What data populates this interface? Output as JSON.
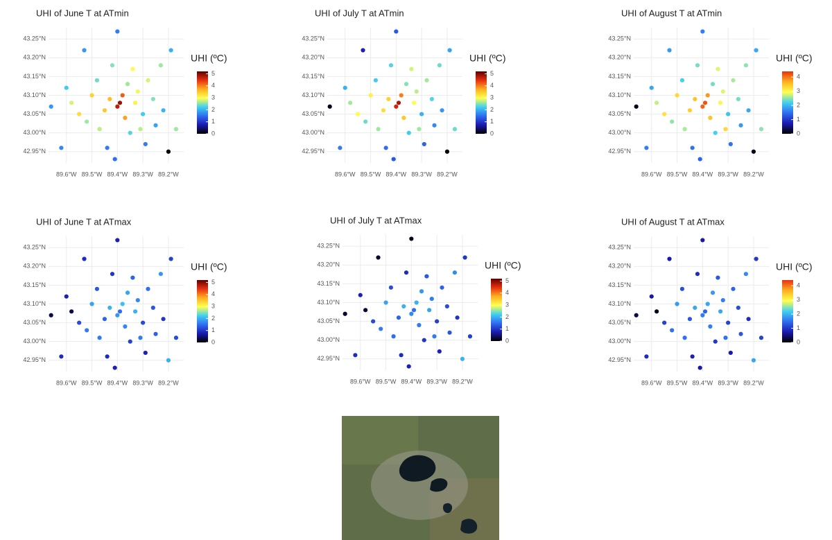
{
  "chart_data": [
    {
      "type": "scatter",
      "title": "UHI of June T at ATmin",
      "x": [
        -89.66,
        -89.62,
        -89.6,
        -89.58,
        -89.55,
        -89.53,
        -89.52,
        -89.5,
        -89.48,
        -89.47,
        -89.45,
        -89.44,
        -89.43,
        -89.42,
        -89.41,
        -89.4,
        -89.4,
        -89.39,
        -89.38,
        -89.37,
        -89.36,
        -89.35,
        -89.34,
        -89.33,
        -89.32,
        -89.31,
        -89.3,
        -89.29,
        -89.28,
        -89.26,
        -89.25,
        -89.23,
        -89.22,
        -89.2,
        -89.19,
        -89.17
      ],
      "y": [
        43.07,
        42.96,
        43.12,
        43.08,
        43.05,
        43.22,
        43.03,
        43.1,
        43.14,
        43.01,
        43.06,
        42.96,
        43.09,
        43.18,
        42.93,
        43.27,
        43.07,
        43.08,
        43.1,
        43.04,
        43.13,
        43.0,
        43.17,
        43.08,
        43.11,
        43.01,
        43.05,
        42.97,
        43.14,
        43.09,
        43.02,
        43.18,
        43.06,
        42.95,
        43.22,
        43.01
      ],
      "values": [
        1.8,
        1.7,
        2.2,
        2.8,
        3.3,
        1.8,
        2.6,
        3.4,
        2.4,
        2.7,
        3.5,
        1.6,
        3.6,
        2.5,
        1.5,
        1.6,
        4.7,
        4.9,
        4.2,
        3.8,
        2.6,
        2.3,
        3.0,
        3.1,
        2.9,
        2.7,
        2.2,
        1.6,
        2.8,
        2.5,
        1.9,
        2.6,
        2.0,
        0.0,
        2.0,
        2.6
      ],
      "xlim": [
        -89.67,
        -89.14
      ],
      "ylim": [
        42.92,
        43.28
      ],
      "xticks": [
        {
          "value": -89.6,
          "label": "89.6°W"
        },
        {
          "value": -89.5,
          "label": "89.5°W"
        },
        {
          "value": -89.4,
          "label": "89.4°W"
        },
        {
          "value": -89.3,
          "label": "89.3°W"
        },
        {
          "value": -89.2,
          "label": "89.2°W"
        }
      ],
      "yticks": [
        {
          "value": 42.95,
          "label": "42.95°N"
        },
        {
          "value": 43.0,
          "label": "43.00°N"
        },
        {
          "value": 43.05,
          "label": "43.05°N"
        },
        {
          "value": 43.1,
          "label": "43.10°N"
        },
        {
          "value": 43.15,
          "label": "43.15°N"
        },
        {
          "value": 43.2,
          "label": "43.20°N"
        },
        {
          "value": 43.25,
          "label": "43.25°N"
        }
      ],
      "grid": true,
      "colorbar": {
        "title": "UHI (ºC)",
        "lim": [
          0,
          5.2
        ],
        "ticks": [
          0,
          1,
          2,
          3,
          4,
          5
        ],
        "colors": [
          "#000000",
          "#1a1ab0",
          "#2f6cf0",
          "#40d0f0",
          "#ffff50",
          "#ffb020",
          "#e83010",
          "#600000"
        ]
      }
    },
    {
      "type": "scatter",
      "title": "UHI of July T at ATmin",
      "x": [
        -89.66,
        -89.62,
        -89.6,
        -89.58,
        -89.55,
        -89.53,
        -89.52,
        -89.5,
        -89.48,
        -89.47,
        -89.45,
        -89.44,
        -89.43,
        -89.42,
        -89.41,
        -89.4,
        -89.4,
        -89.39,
        -89.38,
        -89.37,
        -89.36,
        -89.35,
        -89.34,
        -89.33,
        -89.32,
        -89.31,
        -89.3,
        -89.29,
        -89.28,
        -89.26,
        -89.25,
        -89.23,
        -89.22,
        -89.2,
        -89.19,
        -89.17
      ],
      "y": [
        43.07,
        42.96,
        43.12,
        43.08,
        43.05,
        43.22,
        43.03,
        43.1,
        43.14,
        43.01,
        43.06,
        42.96,
        43.09,
        43.18,
        42.93,
        43.27,
        43.07,
        43.08,
        43.1,
        43.04,
        43.13,
        43.0,
        43.17,
        43.08,
        43.11,
        43.01,
        43.05,
        42.97,
        43.14,
        43.09,
        43.02,
        43.18,
        43.06,
        42.95,
        43.22,
        43.01
      ],
      "values": [
        0.1,
        1.6,
        2.0,
        2.6,
        3.0,
        0.8,
        2.4,
        3.1,
        2.2,
        2.6,
        3.3,
        1.5,
        3.4,
        2.3,
        1.3,
        1.3,
        4.6,
        4.8,
        4.0,
        3.5,
        2.5,
        2.2,
        2.8,
        3.0,
        2.7,
        2.6,
        2.0,
        1.4,
        2.6,
        2.3,
        1.7,
        2.4,
        1.8,
        0.0,
        1.9,
        2.4
      ],
      "xlim": [
        -89.67,
        -89.14
      ],
      "ylim": [
        42.92,
        43.28
      ],
      "xticks": [
        {
          "value": -89.6,
          "label": "89.6°W"
        },
        {
          "value": -89.5,
          "label": "89.5°W"
        },
        {
          "value": -89.4,
          "label": "89.4°W"
        },
        {
          "value": -89.3,
          "label": "89.3°W"
        },
        {
          "value": -89.2,
          "label": "89.2°W"
        }
      ],
      "yticks": [
        {
          "value": 42.95,
          "label": "42.95°N"
        },
        {
          "value": 43.0,
          "label": "43.00°N"
        },
        {
          "value": 43.05,
          "label": "43.05°N"
        },
        {
          "value": 43.1,
          "label": "43.10°N"
        },
        {
          "value": 43.15,
          "label": "43.15°N"
        },
        {
          "value": 43.2,
          "label": "43.20°N"
        },
        {
          "value": 43.25,
          "label": "43.25°N"
        }
      ],
      "grid": true,
      "colorbar": {
        "title": "UHI (ºC)",
        "lim": [
          0,
          5.2
        ],
        "ticks": [
          0,
          1,
          2,
          3,
          4,
          5
        ],
        "colors": [
          "#000000",
          "#1a1ab0",
          "#2f6cf0",
          "#40d0f0",
          "#ffff50",
          "#ffb020",
          "#e83010",
          "#600000"
        ]
      }
    },
    {
      "type": "scatter",
      "title": "UHI of August T at ATmin",
      "x": [
        -89.66,
        -89.62,
        -89.6,
        -89.58,
        -89.55,
        -89.53,
        -89.52,
        -89.5,
        -89.48,
        -89.47,
        -89.45,
        -89.44,
        -89.43,
        -89.42,
        -89.41,
        -89.4,
        -89.4,
        -89.39,
        -89.38,
        -89.37,
        -89.36,
        -89.35,
        -89.34,
        -89.33,
        -89.32,
        -89.31,
        -89.3,
        -89.29,
        -89.28,
        -89.26,
        -89.25,
        -89.23,
        -89.22,
        -89.2,
        -89.19,
        -89.17
      ],
      "y": [
        43.07,
        42.96,
        43.12,
        43.08,
        43.05,
        43.22,
        43.03,
        43.1,
        43.14,
        43.01,
        43.06,
        42.96,
        43.09,
        43.18,
        42.93,
        43.27,
        43.07,
        43.08,
        43.1,
        43.04,
        43.13,
        43.0,
        43.17,
        43.08,
        43.11,
        43.01,
        43.05,
        42.97,
        43.14,
        43.09,
        43.02,
        43.18,
        43.06,
        42.95,
        43.22,
        43.01
      ],
      "values": [
        0.1,
        1.6,
        1.9,
        2.7,
        3.2,
        1.8,
        2.5,
        3.3,
        2.2,
        2.6,
        3.4,
        1.5,
        3.5,
        2.4,
        1.4,
        1.6,
        4.1,
        4.2,
        3.8,
        3.5,
        2.4,
        2.2,
        2.8,
        3.0,
        2.8,
        3.3,
        2.1,
        1.5,
        2.6,
        2.4,
        1.8,
        2.5,
        1.9,
        0.1,
        1.9,
        2.5
      ],
      "xlim": [
        -89.67,
        -89.14
      ],
      "ylim": [
        42.92,
        43.28
      ],
      "xticks": [
        {
          "value": -89.6,
          "label": "89.6°W"
        },
        {
          "value": -89.5,
          "label": "89.5°W"
        },
        {
          "value": -89.4,
          "label": "89.4°W"
        },
        {
          "value": -89.3,
          "label": "89.3°W"
        },
        {
          "value": -89.2,
          "label": "89.2°W"
        }
      ],
      "yticks": [
        {
          "value": 42.95,
          "label": "42.95°N"
        },
        {
          "value": 43.0,
          "label": "43.00°N"
        },
        {
          "value": 43.05,
          "label": "43.05°N"
        },
        {
          "value": 43.1,
          "label": "43.10°N"
        },
        {
          "value": 43.15,
          "label": "43.15°N"
        },
        {
          "value": 43.2,
          "label": "43.20°N"
        },
        {
          "value": 43.25,
          "label": "43.25°N"
        }
      ],
      "grid": true,
      "colorbar": {
        "title": "UHI (ºC)",
        "lim": [
          0,
          4.4
        ],
        "ticks": [
          0,
          1,
          2,
          3,
          4
        ],
        "colors": [
          "#000000",
          "#1a1ab0",
          "#2f6cf0",
          "#40d0f0",
          "#ffff50",
          "#ffb020",
          "#e83010"
        ]
      }
    },
    {
      "type": "scatter",
      "title": "UHI of June T at ATmax",
      "x": [
        -89.66,
        -89.62,
        -89.6,
        -89.58,
        -89.55,
        -89.53,
        -89.52,
        -89.5,
        -89.48,
        -89.47,
        -89.45,
        -89.44,
        -89.43,
        -89.42,
        -89.41,
        -89.4,
        -89.4,
        -89.39,
        -89.38,
        -89.37,
        -89.36,
        -89.35,
        -89.34,
        -89.33,
        -89.32,
        -89.31,
        -89.3,
        -89.29,
        -89.28,
        -89.26,
        -89.25,
        -89.23,
        -89.22,
        -89.2,
        -89.19,
        -89.17
      ],
      "y": [
        43.07,
        42.96,
        43.12,
        43.08,
        43.05,
        43.22,
        43.03,
        43.1,
        43.14,
        43.01,
        43.06,
        42.96,
        43.09,
        43.18,
        42.93,
        43.27,
        43.07,
        43.08,
        43.1,
        43.04,
        43.13,
        43.0,
        43.17,
        43.08,
        43.11,
        43.01,
        43.05,
        42.97,
        43.14,
        43.09,
        43.02,
        43.18,
        43.06,
        42.95,
        43.22,
        43.01
      ],
      "values": [
        0.3,
        0.9,
        0.8,
        0.3,
        1.2,
        0.9,
        1.6,
        1.9,
        1.3,
        1.6,
        1.4,
        0.9,
        2.0,
        1.0,
        0.8,
        0.8,
        1.8,
        1.5,
        2.1,
        1.7,
        1.9,
        1.1,
        1.4,
        2.0,
        1.7,
        1.6,
        1.2,
        0.8,
        1.5,
        1.3,
        1.4,
        1.8,
        1.0,
        2.0,
        1.1,
        1.2
      ],
      "xlim": [
        -89.67,
        -89.14
      ],
      "ylim": [
        42.92,
        43.28
      ],
      "xticks": [
        {
          "value": -89.6,
          "label": "89.6°W"
        },
        {
          "value": -89.5,
          "label": "89.5°W"
        },
        {
          "value": -89.4,
          "label": "89.4°W"
        },
        {
          "value": -89.3,
          "label": "89.3°W"
        },
        {
          "value": -89.2,
          "label": "89.2°W"
        }
      ],
      "yticks": [
        {
          "value": 42.95,
          "label": "42.95°N"
        },
        {
          "value": 43.0,
          "label": "43.00°N"
        },
        {
          "value": 43.05,
          "label": "43.05°N"
        },
        {
          "value": 43.1,
          "label": "43.10°N"
        },
        {
          "value": 43.15,
          "label": "43.15°N"
        },
        {
          "value": 43.2,
          "label": "43.20°N"
        },
        {
          "value": 43.25,
          "label": "43.25°N"
        }
      ],
      "grid": true,
      "colorbar": {
        "title": "UHI (ºC)",
        "lim": [
          0,
          5.2
        ],
        "ticks": [
          0,
          1,
          2,
          3,
          4,
          5
        ],
        "colors": [
          "#000000",
          "#1a1ab0",
          "#2f6cf0",
          "#40d0f0",
          "#ffff50",
          "#ffb020",
          "#e83010",
          "#600000"
        ]
      }
    },
    {
      "type": "scatter",
      "title": "UHI of July T at ATmax",
      "x": [
        -89.66,
        -89.62,
        -89.6,
        -89.58,
        -89.55,
        -89.53,
        -89.52,
        -89.5,
        -89.48,
        -89.47,
        -89.45,
        -89.44,
        -89.43,
        -89.42,
        -89.41,
        -89.4,
        -89.4,
        -89.39,
        -89.38,
        -89.37,
        -89.36,
        -89.35,
        -89.34,
        -89.33,
        -89.32,
        -89.31,
        -89.3,
        -89.29,
        -89.28,
        -89.26,
        -89.25,
        -89.23,
        -89.22,
        -89.2,
        -89.19,
        -89.17
      ],
      "y": [
        43.07,
        42.96,
        43.12,
        43.08,
        43.05,
        43.22,
        43.03,
        43.1,
        43.14,
        43.01,
        43.06,
        42.96,
        43.09,
        43.18,
        42.93,
        43.27,
        43.07,
        43.08,
        43.1,
        43.04,
        43.13,
        43.0,
        43.17,
        43.08,
        43.11,
        43.01,
        43.05,
        42.97,
        43.14,
        43.09,
        43.02,
        43.18,
        43.06,
        42.95,
        43.22,
        43.01
      ],
      "values": [
        0.2,
        0.9,
        0.8,
        0.2,
        1.2,
        0.2,
        1.6,
        1.9,
        1.2,
        1.5,
        1.4,
        0.9,
        2.0,
        0.9,
        0.8,
        0.1,
        1.7,
        1.5,
        2.0,
        1.6,
        1.8,
        1.0,
        1.3,
        1.9,
        1.6,
        1.6,
        1.1,
        0.8,
        1.4,
        1.2,
        1.3,
        1.7,
        1.0,
        2.0,
        1.0,
        1.1
      ],
      "xlim": [
        -89.67,
        -89.14
      ],
      "ylim": [
        42.92,
        43.28
      ],
      "xticks": [
        {
          "value": -89.6,
          "label": "89.6°W"
        },
        {
          "value": -89.5,
          "label": "89.5°W"
        },
        {
          "value": -89.4,
          "label": "89.4°W"
        },
        {
          "value": -89.3,
          "label": "89.3°W"
        },
        {
          "value": -89.2,
          "label": "89.2°W"
        }
      ],
      "yticks": [
        {
          "value": 42.95,
          "label": "42.95°N"
        },
        {
          "value": 43.0,
          "label": "43.00°N"
        },
        {
          "value": 43.05,
          "label": "43.05°N"
        },
        {
          "value": 43.1,
          "label": "43.10°N"
        },
        {
          "value": 43.15,
          "label": "43.15°N"
        },
        {
          "value": 43.2,
          "label": "43.20°N"
        },
        {
          "value": 43.25,
          "label": "43.25°N"
        }
      ],
      "grid": true,
      "colorbar": {
        "title": "UHI (ºC)",
        "lim": [
          0,
          5.2
        ],
        "ticks": [
          0,
          1,
          2,
          3,
          4,
          5
        ],
        "colors": [
          "#000000",
          "#1a1ab0",
          "#2f6cf0",
          "#40d0f0",
          "#ffff50",
          "#ffb020",
          "#e83010",
          "#600000"
        ]
      }
    },
    {
      "type": "scatter",
      "title": "UHI of August T at ATmax",
      "x": [
        -89.66,
        -89.62,
        -89.6,
        -89.58,
        -89.55,
        -89.53,
        -89.52,
        -89.5,
        -89.48,
        -89.47,
        -89.45,
        -89.44,
        -89.43,
        -89.42,
        -89.41,
        -89.4,
        -89.4,
        -89.39,
        -89.38,
        -89.37,
        -89.36,
        -89.35,
        -89.34,
        -89.33,
        -89.32,
        -89.31,
        -89.3,
        -89.29,
        -89.28,
        -89.26,
        -89.25,
        -89.23,
        -89.22,
        -89.2,
        -89.19,
        -89.17
      ],
      "y": [
        43.07,
        42.96,
        43.12,
        43.08,
        43.05,
        43.22,
        43.03,
        43.1,
        43.14,
        43.01,
        43.06,
        42.96,
        43.09,
        43.18,
        42.93,
        43.27,
        43.07,
        43.08,
        43.1,
        43.04,
        43.13,
        43.0,
        43.17,
        43.08,
        43.11,
        43.01,
        43.05,
        42.97,
        43.14,
        43.09,
        43.02,
        43.18,
        43.06,
        42.95,
        43.22,
        43.01
      ],
      "values": [
        0.3,
        0.9,
        0.7,
        0.1,
        1.1,
        0.7,
        1.5,
        1.8,
        1.2,
        1.5,
        1.3,
        0.8,
        1.9,
        0.9,
        0.7,
        0.7,
        1.6,
        1.4,
        1.9,
        1.6,
        1.8,
        1.0,
        1.3,
        1.9,
        1.6,
        1.5,
        1.1,
        0.7,
        1.4,
        1.2,
        1.3,
        1.7,
        0.9,
        1.9,
        1.0,
        1.1
      ],
      "xlim": [
        -89.67,
        -89.14
      ],
      "ylim": [
        42.92,
        43.28
      ],
      "xticks": [
        {
          "value": -89.6,
          "label": "89.6°W"
        },
        {
          "value": -89.5,
          "label": "89.5°W"
        },
        {
          "value": -89.4,
          "label": "89.4°W"
        },
        {
          "value": -89.3,
          "label": "89.3°W"
        },
        {
          "value": -89.2,
          "label": "89.2°W"
        }
      ],
      "yticks": [
        {
          "value": 42.95,
          "label": "42.95°N"
        },
        {
          "value": 43.0,
          "label": "43.00°N"
        },
        {
          "value": 43.05,
          "label": "43.05°N"
        },
        {
          "value": 43.1,
          "label": "43.10°N"
        },
        {
          "value": 43.15,
          "label": "43.15°N"
        },
        {
          "value": 43.2,
          "label": "43.20°N"
        },
        {
          "value": 43.25,
          "label": "43.25°N"
        }
      ],
      "grid": true,
      "colorbar": {
        "title": "UHI (ºC)",
        "lim": [
          0,
          4.4
        ],
        "ticks": [
          0,
          1,
          2,
          3,
          4
        ],
        "colors": [
          "#000000",
          "#1a1ab0",
          "#2f6cf0",
          "#40d0f0",
          "#ffff50",
          "#ffb020",
          "#e83010"
        ]
      }
    }
  ]
}
